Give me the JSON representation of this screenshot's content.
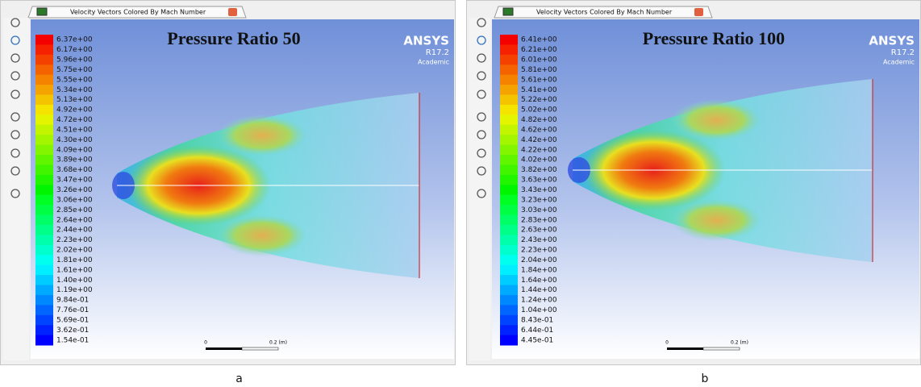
{
  "panels": [
    {
      "tab_title": "Velocity Vectors Colored By Mach Number",
      "title": "Pressure Ratio 50",
      "brand": "ANSYS",
      "version": "R17.2",
      "edition": "Academic",
      "colorbar_labels": [
        "6.37e+00",
        "6.17e+00",
        "5.96e+00",
        "5.75e+00",
        "5.55e+00",
        "5.34e+00",
        "5.13e+00",
        "4.92e+00",
        "4.72e+00",
        "4.51e+00",
        "4.30e+00",
        "4.09e+00",
        "3.89e+00",
        "3.68e+00",
        "3.47e+00",
        "3.26e+00",
        "3.06e+00",
        "2.85e+00",
        "2.64e+00",
        "2.44e+00",
        "2.23e+00",
        "2.02e+00",
        "1.81e+00",
        "1.61e+00",
        "1.40e+00",
        "1.19e+00",
        "9.84e-01",
        "7.76e-01",
        "5.69e-01",
        "3.62e-01",
        "1.54e-01"
      ],
      "scale_start": "0",
      "scale_end": "0.2 (m)",
      "caption": "a"
    },
    {
      "tab_title": "Velocity Vectors Colored By Mach Number",
      "title": "Pressure Ratio 100",
      "brand": "ANSYS",
      "version": "R17.2",
      "edition": "Academic",
      "colorbar_labels": [
        "6.41e+00",
        "6.21e+00",
        "6.01e+00",
        "5.81e+00",
        "5.61e+00",
        "5.41e+00",
        "5.22e+00",
        "5.02e+00",
        "4.82e+00",
        "4.62e+00",
        "4.42e+00",
        "4.22e+00",
        "4.02e+00",
        "3.82e+00",
        "3.63e+00",
        "3.43e+00",
        "3.23e+00",
        "3.03e+00",
        "2.83e+00",
        "2.63e+00",
        "2.43e+00",
        "2.23e+00",
        "2.04e+00",
        "1.84e+00",
        "1.64e+00",
        "1.44e+00",
        "1.24e+00",
        "1.04e+00",
        "8.43e-01",
        "6.44e-01",
        "4.45e-01"
      ],
      "scale_start": "0",
      "scale_end": "0.2 (m)",
      "caption": "b"
    }
  ]
}
